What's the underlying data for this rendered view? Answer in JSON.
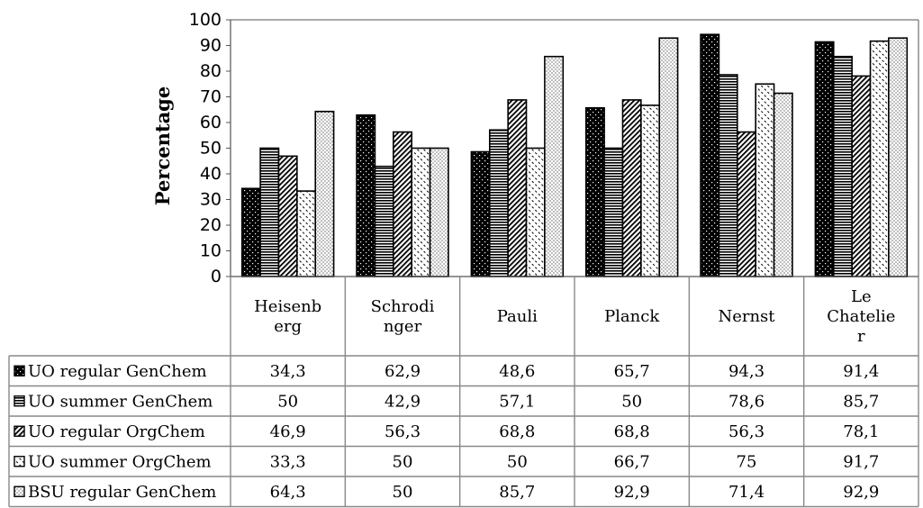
{
  "chart_data": {
    "type": "bar",
    "ylabel": "Percentage",
    "ylim": [
      0,
      100
    ],
    "yticks": [
      "0",
      "10",
      "20",
      "30",
      "40",
      "50",
      "60",
      "70",
      "80",
      "90",
      "100"
    ],
    "categories": [
      "Heisenberg",
      "Schrodinger",
      "Pauli",
      "Planck",
      "Nernst",
      "Le Chatelier"
    ],
    "category_header_lines": [
      [
        "Heisenb",
        "erg"
      ],
      [
        "Schrodi",
        "nger"
      ],
      [
        "Pauli"
      ],
      [
        "Planck"
      ],
      [
        "Nernst"
      ],
      [
        "Le",
        "Chatelie",
        "r"
      ]
    ],
    "legend_placement": "data table below chart",
    "series": [
      {
        "name": "UO regular GenChem",
        "values": [
          34.3,
          62.9,
          48.6,
          65.7,
          94.3,
          91.4
        ],
        "labels": [
          "34,3",
          "62,9",
          "48,6",
          "65,7",
          "94,3",
          "91,4"
        ],
        "pattern": "dots-dark"
      },
      {
        "name": "UO summer GenChem",
        "values": [
          50,
          42.9,
          57.1,
          50,
          78.6,
          85.7
        ],
        "labels": [
          "50",
          "42,9",
          "57,1",
          "50",
          "78,6",
          "85,7"
        ],
        "pattern": "horizontal-lines"
      },
      {
        "name": "UO regular OrgChem",
        "values": [
          46.9,
          56.3,
          68.8,
          68.8,
          56.3,
          78.1
        ],
        "labels": [
          "46,9",
          "56,3",
          "68,8",
          "68,8",
          "56,3",
          "78,1"
        ],
        "pattern": "diagonal-dense"
      },
      {
        "name": "UO summer OrgChem",
        "values": [
          33.3,
          50,
          50,
          66.7,
          75,
          91.7
        ],
        "labels": [
          "33,3",
          "50",
          "50",
          "66,7",
          "75",
          "91,7"
        ],
        "pattern": "diagonal-light"
      },
      {
        "name": "BSU regular GenChem",
        "values": [
          64.3,
          50,
          85.7,
          92.9,
          71.4,
          92.9
        ],
        "labels": [
          "64,3",
          "50",
          "85,7",
          "92,9",
          "71,4",
          "92,9"
        ],
        "pattern": "dots-light"
      }
    ]
  }
}
